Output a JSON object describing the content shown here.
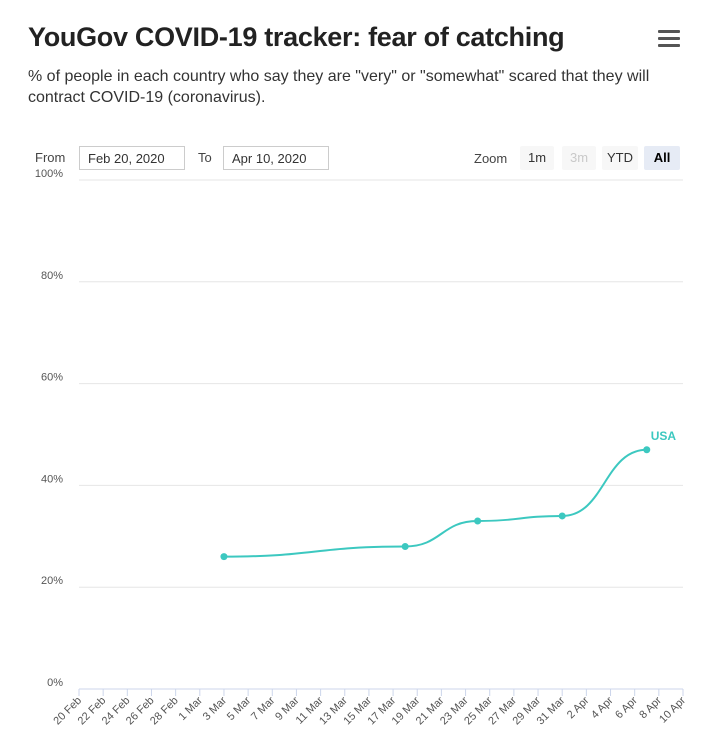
{
  "header": {
    "title": "YouGov COVID-19 tracker: fear of catching",
    "subtitle": "% of people in each country who say they are \"very\" or \"somewhat\" scared that they will contract COVID-19 (coronavirus).",
    "menu_icon": "hamburger-menu-icon"
  },
  "range_selector": {
    "from_label": "From",
    "from_value": "Feb 20, 2020",
    "to_label": "To",
    "to_value": "Apr 10, 2020",
    "zoom_label": "Zoom",
    "zoom_buttons": [
      {
        "label": "1m",
        "state": "normal"
      },
      {
        "label": "3m",
        "state": "disabled"
      },
      {
        "label": "YTD",
        "state": "normal"
      },
      {
        "label": "All",
        "state": "selected"
      }
    ]
  },
  "chart_data": {
    "type": "line",
    "title": "YouGov COVID-19 tracker: fear of catching",
    "xlabel": "",
    "ylabel": "",
    "ylim": [
      0,
      100
    ],
    "ytick_labels": [
      "0%",
      "20%",
      "40%",
      "60%",
      "80%",
      "100%"
    ],
    "xlim": [
      "2020-02-20",
      "2020-04-10"
    ],
    "xtick_labels": [
      "20 Feb",
      "22 Feb",
      "24 Feb",
      "26 Feb",
      "28 Feb",
      "1 Mar",
      "3 Mar",
      "5 Mar",
      "7 Mar",
      "9 Mar",
      "11 Mar",
      "13 Mar",
      "15 Mar",
      "17 Mar",
      "19 Mar",
      "21 Mar",
      "23 Mar",
      "25 Mar",
      "27 Mar",
      "29 Mar",
      "31 Mar",
      "2 Apr",
      "4 Apr",
      "6 Apr",
      "8 Apr",
      "10 Apr"
    ],
    "grid": true,
    "series": [
      {
        "name": "USA",
        "color": "#3cc8c0",
        "x": [
          "2020-03-03",
          "2020-03-18",
          "2020-03-24",
          "2020-03-31",
          "2020-04-07"
        ],
        "y": [
          26,
          28,
          33,
          34,
          47
        ]
      }
    ]
  }
}
